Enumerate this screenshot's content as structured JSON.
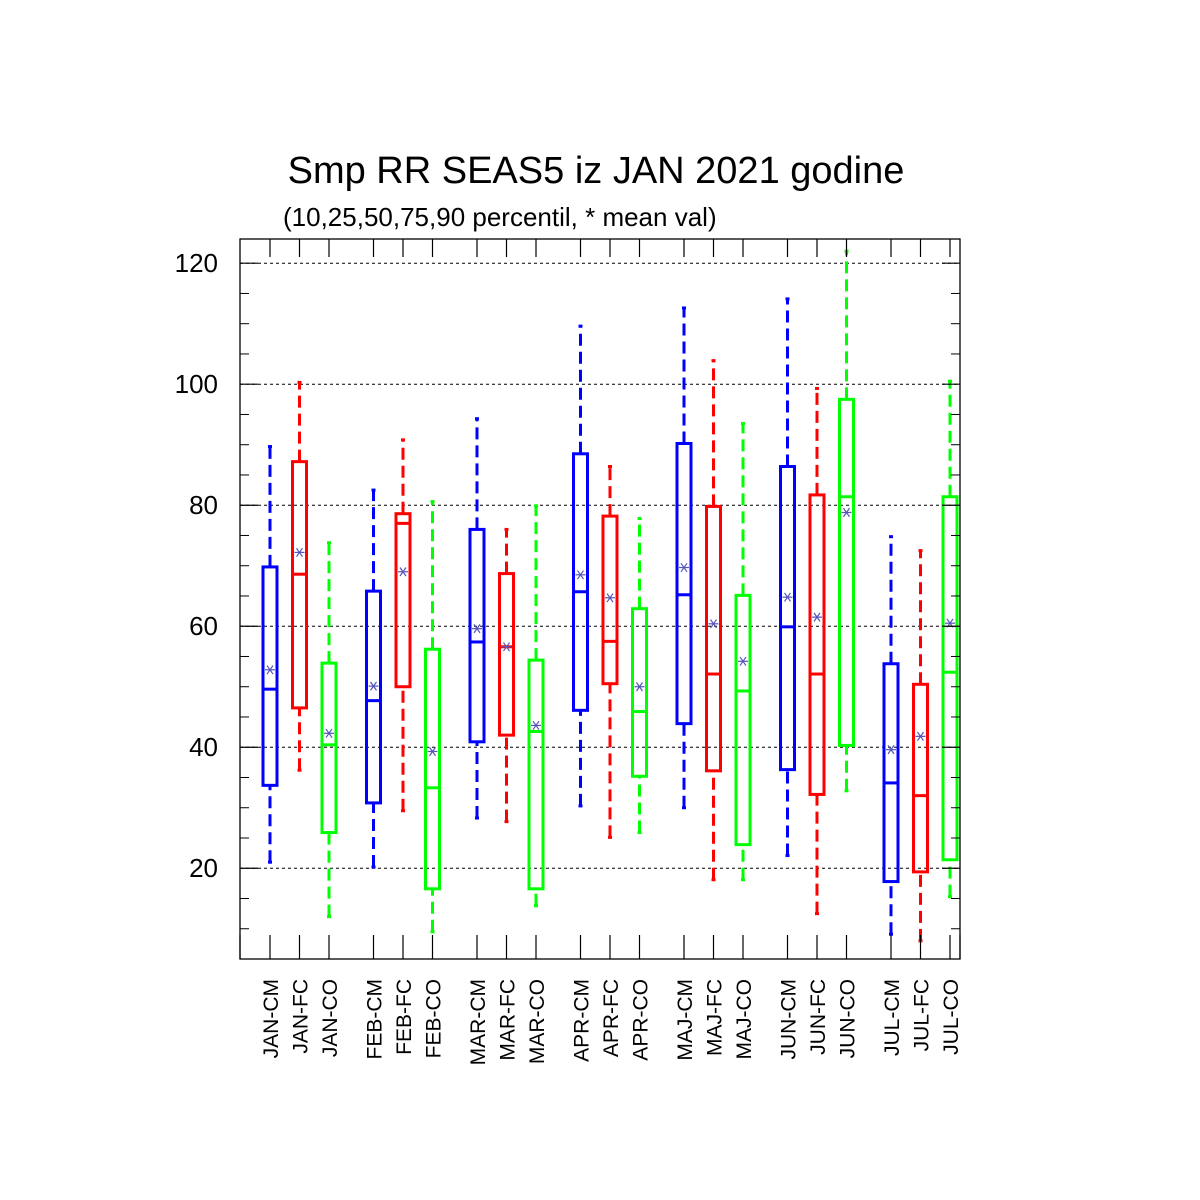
{
  "chart_data": {
    "type": "box",
    "title": "Smp RR SEAS5 iz JAN 2021 godine",
    "subtitle": "(10,25,50,75,90 percentil, * mean val)",
    "ylim": [
      5,
      124
    ],
    "yticks": [
      20,
      40,
      60,
      80,
      100,
      120
    ],
    "grid": true,
    "colors": {
      "CM": "#0000ff",
      "FC": "#ff0000",
      "CO": "#00ff00",
      "mean_marker": "#5555bb"
    },
    "categories": [
      {
        "label": "JAN-CM",
        "series": "CM",
        "p10": 21,
        "p25": 33.7,
        "p50": 49.6,
        "p75": 69.8,
        "p90": 89.7,
        "mean": 52.8
      },
      {
        "label": "JAN-FC",
        "series": "FC",
        "p10": 36.2,
        "p25": 46.5,
        "p50": 68.6,
        "p75": 87.2,
        "p90": 100.3,
        "mean": 72.2
      },
      {
        "label": "JAN-CO",
        "series": "CO",
        "p10": 12,
        "p25": 25.9,
        "p50": 40.4,
        "p75": 53.9,
        "p90": 73.8,
        "mean": 42.3
      },
      {
        "label": "FEB-CM",
        "series": "CM",
        "p10": 20.2,
        "p25": 30.8,
        "p50": 47.7,
        "p75": 65.8,
        "p90": 82.5,
        "mean": 50.1
      },
      {
        "label": "FEB-FC",
        "series": "FC",
        "p10": 29.5,
        "p25": 50,
        "p50": 77,
        "p75": 78.6,
        "p90": 90.8,
        "mean": 69
      },
      {
        "label": "FEB-CO",
        "series": "CO",
        "p10": 9.5,
        "p25": 16.6,
        "p50": 33.3,
        "p75": 56.2,
        "p90": 80.6,
        "mean": 39.3
      },
      {
        "label": "MAR-CM",
        "series": "CM",
        "p10": 28.3,
        "p25": 40.9,
        "p50": 57.4,
        "p75": 76,
        "p90": 94.3,
        "mean": 59.6
      },
      {
        "label": "MAR-FC",
        "series": "FC",
        "p10": 27.7,
        "p25": 42,
        "p50": 56.6,
        "p75": 68.7,
        "p90": 76,
        "mean": 56.6
      },
      {
        "label": "MAR-CO",
        "series": "CO",
        "p10": 13.8,
        "p25": 16.6,
        "p50": 42.6,
        "p75": 54.4,
        "p90": 79.9,
        "mean": 43.6
      },
      {
        "label": "APR-CM",
        "series": "CM",
        "p10": 30.3,
        "p25": 46.1,
        "p50": 65.7,
        "p75": 88.5,
        "p90": 109.6,
        "mean": 68.5
      },
      {
        "label": "APR-FC",
        "series": "FC",
        "p10": 25.1,
        "p25": 50.5,
        "p50": 57.5,
        "p75": 78.2,
        "p90": 86.4,
        "mean": 64.7
      },
      {
        "label": "APR-CO",
        "series": "CO",
        "p10": 25.9,
        "p25": 35.2,
        "p50": 45.9,
        "p75": 62.9,
        "p90": 77.8,
        "mean": 50
      },
      {
        "label": "MAJ-CM",
        "series": "CM",
        "p10": 30,
        "p25": 43.9,
        "p50": 65.2,
        "p75": 90.2,
        "p90": 112.6,
        "mean": 69.7
      },
      {
        "label": "MAJ-FC",
        "series": "FC",
        "p10": 18.1,
        "p25": 36.1,
        "p50": 52.1,
        "p75": 79.8,
        "p90": 103.9,
        "mean": 60.4
      },
      {
        "label": "MAJ-CO",
        "series": "CO",
        "p10": 18.1,
        "p25": 23.9,
        "p50": 49.3,
        "p75": 65.1,
        "p90": 93.5,
        "mean": 54.2
      },
      {
        "label": "JUN-CM",
        "series": "CM",
        "p10": 22.1,
        "p25": 36.3,
        "p50": 59.9,
        "p75": 86.4,
        "p90": 114.1,
        "mean": 64.8
      },
      {
        "label": "JUN-FC",
        "series": "FC",
        "p10": 12.5,
        "p25": 32.2,
        "p50": 52.1,
        "p75": 81.7,
        "p90": 99.3,
        "mean": 61.5
      },
      {
        "label": "JUN-CO",
        "series": "CO",
        "p10": 32.8,
        "p25": 40.3,
        "p50": 81.4,
        "p75": 97.5,
        "p90": 122,
        "mean": 78.8
      },
      {
        "label": "JUL-CM",
        "series": "CM",
        "p10": 9.1,
        "p25": 17.8,
        "p50": 34.1,
        "p75": 53.8,
        "p90": 74.8,
        "mean": 39.6
      },
      {
        "label": "JUL-FC",
        "series": "FC",
        "p10": 8,
        "p25": 19.4,
        "p50": 32,
        "p75": 50.4,
        "p90": 72.5,
        "mean": 41.8
      },
      {
        "label": "JUL-CO",
        "series": "CO",
        "p10": 15.3,
        "p25": 21.4,
        "p50": 52.4,
        "p75": 81.4,
        "p90": 100.5,
        "mean": 60.5
      }
    ]
  }
}
